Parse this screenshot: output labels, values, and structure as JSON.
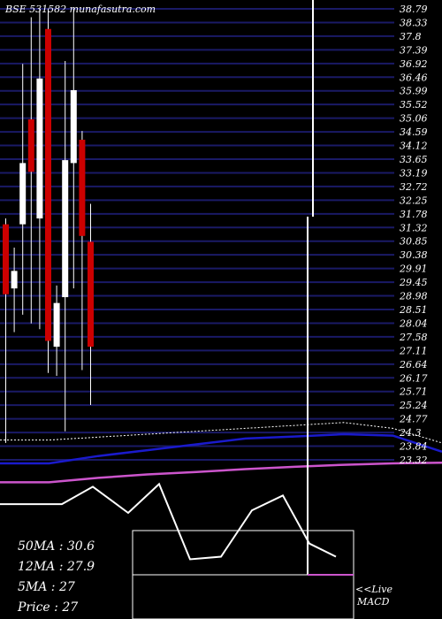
{
  "header": {
    "title": "BSE 531582 munafasutra.com"
  },
  "stats": {
    "ma50": "50MA : 30.6",
    "ma12": "12MA : 27.9",
    "ma5": "5MA : 27",
    "price": "Price   : 27"
  },
  "live_label": "<<Live",
  "macd_label": "MACD",
  "colors": {
    "background": "#000000",
    "grid": "#1a1a66",
    "up_candle": "#ffffff",
    "down_candle": "#cc0000",
    "ma_dotted": "#ffffff",
    "ma_blue": "#1a1acc",
    "ma_magenta": "#cc55cc",
    "macd_line": "#ffffff"
  },
  "chart_data": {
    "type": "candlestick",
    "title": "BSE 531582 munafasutra.com",
    "y_ticks": [
      "38.79",
      "38.33",
      "37.8",
      "37.39",
      "36.92",
      "36.46",
      "35.99",
      "35.52",
      "35.06",
      "34.59",
      "34.12",
      "33.65",
      "33.19",
      "32.72",
      "32.25",
      "31.78",
      "31.32",
      "30.85",
      "30.38",
      "29.91",
      "29.45",
      "28.98",
      "28.51",
      "28.04",
      "27.58",
      "27.11",
      "26.64",
      "26.17",
      "25.71",
      "25.24",
      "24.77",
      "24.3",
      "23.84",
      "23.32"
    ],
    "ylim": [
      23.32,
      38.79
    ],
    "grid": true,
    "candles": [
      {
        "open": 31.4,
        "close": 29.0,
        "high": 31.6,
        "low": 23.9
      },
      {
        "open": 29.2,
        "close": 29.8,
        "high": 30.6,
        "low": 27.7
      },
      {
        "open": 31.4,
        "close": 33.5,
        "high": 36.9,
        "low": 28.3
      },
      {
        "open": 35.0,
        "close": 33.2,
        "high": 38.5,
        "low": 28.0
      },
      {
        "open": 31.6,
        "close": 36.4,
        "high": 38.8,
        "low": 27.8
      },
      {
        "open": 38.1,
        "close": 27.4,
        "high": 38.8,
        "low": 26.3
      },
      {
        "open": 27.2,
        "close": 28.7,
        "high": 29.3,
        "low": 26.2
      },
      {
        "open": 28.9,
        "close": 33.6,
        "high": 37.0,
        "low": 24.3
      },
      {
        "open": 33.5,
        "close": 36.0,
        "high": 38.8,
        "low": 29.2
      },
      {
        "open": 34.3,
        "close": 31.0,
        "high": 34.6,
        "low": 26.4
      },
      {
        "open": 30.8,
        "close": 27.2,
        "high": 32.1,
        "low": 25.2
      }
    ],
    "ma_dotted": [
      24.0,
      24.0,
      24.1,
      24.2,
      24.3,
      24.4,
      24.5,
      24.6,
      24.4,
      23.9
    ],
    "ma_blue": [
      23.2,
      23.2,
      23.45,
      23.65,
      23.85,
      24.05,
      24.12,
      24.2,
      24.15,
      23.6
    ],
    "ma_magenta": [
      22.55,
      22.55,
      22.7,
      22.82,
      22.9,
      23.0,
      23.08,
      23.15,
      23.2,
      23.22
    ],
    "macd": [
      {
        "x": 0,
        "y": 15
      },
      {
        "x": 35,
        "y": 15
      },
      {
        "x": 70,
        "y": 15
      },
      {
        "x": 105,
        "y": 35
      },
      {
        "x": 145,
        "y": 5
      },
      {
        "x": 180,
        "y": 38
      },
      {
        "x": 215,
        "y": -48
      },
      {
        "x": 250,
        "y": -45
      },
      {
        "x": 285,
        "y": 8
      },
      {
        "x": 320,
        "y": 25
      },
      {
        "x": 350,
        "y": -30
      },
      {
        "x": 380,
        "y": -45
      }
    ],
    "live_spike_x": 350
  }
}
